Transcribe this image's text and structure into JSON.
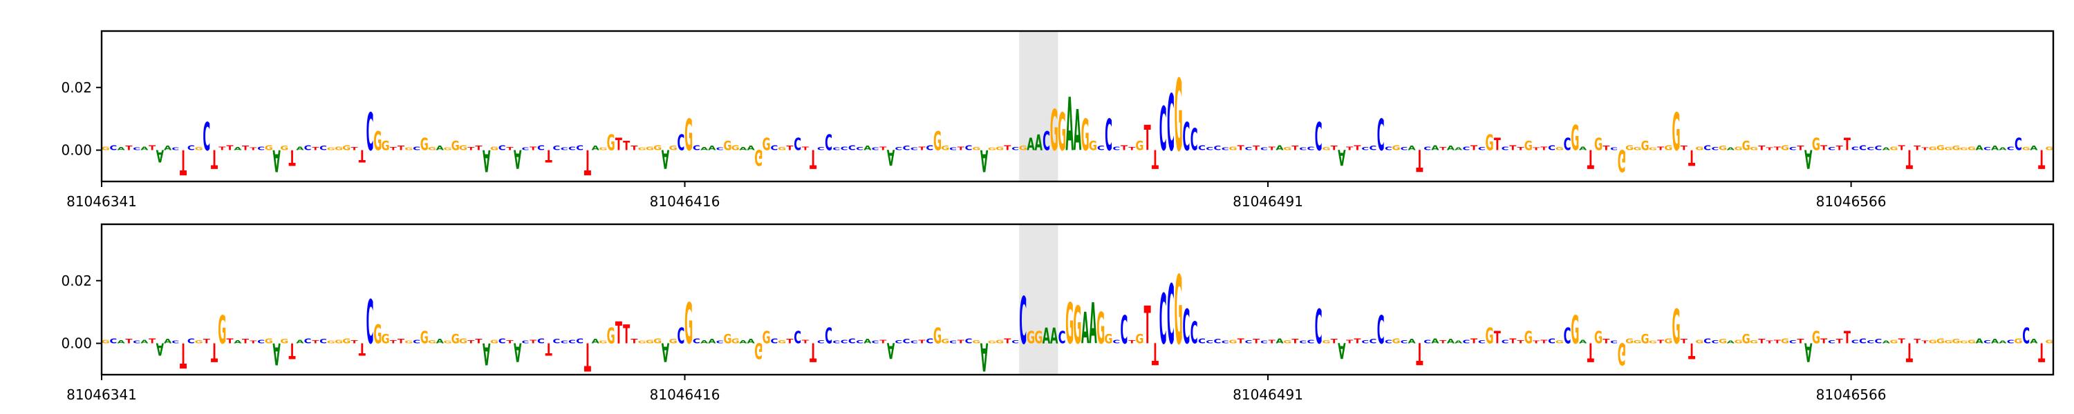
{
  "colors": {
    "A": "#008000",
    "C": "#0000ff",
    "G": "#ffa500",
    "T": "#ff0000",
    "highlight": "#e6e6e6"
  },
  "chart_data": [
    {
      "type": "sequence-logo",
      "xlim": [
        81046341,
        81046592
      ],
      "ylim": [
        -0.01,
        0.038
      ],
      "xticks": [
        81046341,
        81046416,
        81046491,
        81046566
      ],
      "yticks": [
        0.0,
        0.02
      ],
      "ytick_labels": [
        "0.00",
        "0.02"
      ],
      "highlight_range": [
        81046459,
        81046464
      ],
      "sequence": "GCATCATAACTCGTCTTATTCGGGAACTCGGGTGTGGTTGCCGAGCGTTTGCTTCTCTCCCCCAGTTTTGGGGGGACAACGGAAGGCGTTTCCGCCCCACTCCCCTCCGCTCGTGGTCGTTCTTTCGGCTCTTGTGGCTCCCCCCGTCTCTAGTCCCGTCTTCCCC",
      "motifs": [
        {
          "start": 81046354,
          "seq": "CG",
          "values": [
            0.009,
            0.007
          ]
        },
        {
          "start": 81046375,
          "seq": "CGG",
          "values": [
            0.012,
            0.006,
            0.003
          ]
        },
        {
          "start": 81046382,
          "seq": "G",
          "values": [
            0.004
          ]
        },
        {
          "start": 81046386,
          "seq": "G",
          "values": [
            0.003
          ]
        },
        {
          "start": 81046390,
          "seq": "G",
          "values": [
            0.004
          ]
        },
        {
          "start": 81046394,
          "seq": "G",
          "values": [
            0.004
          ]
        },
        {
          "start": 81046406,
          "seq": "GTT",
          "values": [
            0.005,
            0.004,
            0.003
          ]
        },
        {
          "start": 81046415,
          "seq": "CG",
          "values": [
            0.005,
            0.01
          ]
        },
        {
          "start": 81046421,
          "seq": "G",
          "values": [
            0.003
          ]
        },
        {
          "start": 81046426,
          "seq": "G",
          "values": [
            0.004
          ]
        },
        {
          "start": 81046430,
          "seq": "C",
          "values": [
            0.004
          ]
        },
        {
          "start": 81046434,
          "seq": "C",
          "values": [
            0.005
          ]
        },
        {
          "start": 81046448,
          "seq": "G",
          "values": [
            0.006
          ]
        },
        {
          "start": 81046460,
          "seq": "AAC",
          "values": [
            0.004,
            0.005,
            0.006
          ]
        },
        {
          "start": 81046463,
          "seq": "GGAAG",
          "values": [
            0.013,
            0.012,
            0.017,
            0.013,
            0.01
          ]
        },
        {
          "start": 81046468,
          "seq": "G",
          "values": [
            0.003
          ]
        },
        {
          "start": 81046470,
          "seq": "C",
          "values": [
            0.01
          ]
        },
        {
          "start": 81046474,
          "seq": "GTTCCGCC",
          "values": [
            0.003,
            0.008,
            0.011,
            0.014,
            0.018,
            0.023,
            0.009,
            0.007
          ]
        },
        {
          "start": 81046497,
          "seq": "C",
          "values": [
            0.009
          ]
        },
        {
          "start": 81046505,
          "seq": "C",
          "values": [
            0.01
          ]
        },
        {
          "start": 81046510,
          "seq": "C",
          "values": [
            0.005
          ]
        },
        {
          "start": 81046519,
          "seq": "GT",
          "values": [
            0.005,
            0.004
          ]
        },
        {
          "start": 81046524,
          "seq": "G",
          "values": [
            0.003
          ]
        },
        {
          "start": 81046529,
          "seq": "CG",
          "values": [
            0.004,
            0.008
          ]
        },
        {
          "start": 81046533,
          "seq": "G",
          "values": [
            0.004
          ]
        },
        {
          "start": 81046539,
          "seq": "G",
          "values": [
            0.003
          ]
        },
        {
          "start": 81046543,
          "seq": "G",
          "values": [
            0.012
          ]
        },
        {
          "start": 81046552,
          "seq": "G",
          "values": [
            0.003
          ]
        },
        {
          "start": 81046561,
          "seq": "G",
          "values": [
            0.004
          ]
        },
        {
          "start": 81046565,
          "seq": "T",
          "values": [
            0.004
          ]
        },
        {
          "start": 81046587,
          "seq": "C",
          "values": [
            0.004
          ]
        }
      ],
      "negatives": [
        {
          "pos": 81046348,
          "value": -0.004,
          "base": "A"
        },
        {
          "pos": 81046351,
          "value": -0.008,
          "base": "T"
        },
        {
          "pos": 81046355,
          "value": -0.006,
          "base": "T"
        },
        {
          "pos": 81046363,
          "value": -0.007,
          "base": "A"
        },
        {
          "pos": 81046365,
          "value": -0.005,
          "base": "T"
        },
        {
          "pos": 81046374,
          "value": -0.004,
          "base": "T"
        },
        {
          "pos": 81046390,
          "value": -0.007,
          "base": "A"
        },
        {
          "pos": 81046394,
          "value": -0.006,
          "base": "A"
        },
        {
          "pos": 81046398,
          "value": -0.004,
          "base": "T"
        },
        {
          "pos": 81046403,
          "value": -0.008,
          "base": "T"
        },
        {
          "pos": 81046413,
          "value": -0.006,
          "base": "A"
        },
        {
          "pos": 81046425,
          "value": -0.005,
          "base": "G"
        },
        {
          "pos": 81046432,
          "value": -0.006,
          "base": "T"
        },
        {
          "pos": 81046442,
          "value": -0.005,
          "base": "A"
        },
        {
          "pos": 81046454,
          "value": -0.007,
          "base": "A"
        },
        {
          "pos": 81046476,
          "value": -0.006,
          "base": "T"
        },
        {
          "pos": 81046500,
          "value": -0.005,
          "base": "A"
        },
        {
          "pos": 81046510,
          "value": -0.007,
          "base": "T"
        },
        {
          "pos": 81046532,
          "value": -0.006,
          "base": "T"
        },
        {
          "pos": 81046536,
          "value": -0.007,
          "base": "G"
        },
        {
          "pos": 81046545,
          "value": -0.005,
          "base": "T"
        },
        {
          "pos": 81046560,
          "value": -0.006,
          "base": "A"
        },
        {
          "pos": 81046573,
          "value": -0.006,
          "base": "T"
        },
        {
          "pos": 81046590,
          "value": -0.006,
          "base": "T"
        }
      ]
    },
    {
      "type": "sequence-logo",
      "xlim": [
        81046341,
        81046592
      ],
      "ylim": [
        -0.01,
        0.038
      ],
      "xticks": [
        81046341,
        81046416,
        81046491,
        81046566
      ],
      "yticks": [
        0.0,
        0.02
      ],
      "ytick_labels": [
        "0.00",
        "0.02"
      ],
      "highlight_range": [
        81046459,
        81046464
      ],
      "sequence": "GCATCATAACTCGTCTTATTCGGGAACTCGGGTGTGGTTGCCGAGCGTTTGCTTCTCTCCCCCAGTTTTGGGGGGACAACGGAAGGCGTTTCCGCCCCACTCCCCTCCGCTCGTGGTCGTTCTTTCGGCTCTTGTGGCTCCCCCCGTCTCTAGTCCCGTCTTCCCC",
      "motifs": [
        {
          "start": 81046355,
          "seq": "CG",
          "values": [
            0.004,
            0.009
          ]
        },
        {
          "start": 81046375,
          "seq": "CGG",
          "values": [
            0.014,
            0.006,
            0.003
          ]
        },
        {
          "start": 81046382,
          "seq": "G",
          "values": [
            0.004
          ]
        },
        {
          "start": 81046386,
          "seq": "G",
          "values": [
            0.003
          ]
        },
        {
          "start": 81046390,
          "seq": "G",
          "values": [
            0.004
          ]
        },
        {
          "start": 81046394,
          "seq": "G",
          "values": [
            0.004
          ]
        },
        {
          "start": 81046406,
          "seq": "GTT",
          "values": [
            0.005,
            0.007,
            0.006
          ]
        },
        {
          "start": 81046415,
          "seq": "CG",
          "values": [
            0.005,
            0.013
          ]
        },
        {
          "start": 81046421,
          "seq": "G",
          "values": [
            0.003
          ]
        },
        {
          "start": 81046426,
          "seq": "G",
          "values": [
            0.004
          ]
        },
        {
          "start": 81046430,
          "seq": "C",
          "values": [
            0.004
          ]
        },
        {
          "start": 81046434,
          "seq": "C",
          "values": [
            0.005
          ]
        },
        {
          "start": 81046448,
          "seq": "G",
          "values": [
            0.005
          ]
        },
        {
          "start": 81046459,
          "seq": "CGG",
          "values": [
            0.015,
            0.004,
            0.004
          ]
        },
        {
          "start": 81046462,
          "seq": "AAC",
          "values": [
            0.005,
            0.005,
            0.004
          ]
        },
        {
          "start": 81046465,
          "seq": "GGAAG",
          "values": [
            0.013,
            0.012,
            0.01,
            0.013,
            0.01
          ]
        },
        {
          "start": 81046470,
          "seq": "G",
          "values": [
            0.003
          ]
        },
        {
          "start": 81046472,
          "seq": "C",
          "values": [
            0.009
          ]
        },
        {
          "start": 81046474,
          "seq": "GTTCCGCC",
          "values": [
            0.003,
            0.012,
            0.011,
            0.016,
            0.019,
            0.022,
            0.011,
            0.007
          ]
        },
        {
          "start": 81046497,
          "seq": "C",
          "values": [
            0.011
          ]
        },
        {
          "start": 81046505,
          "seq": "C",
          "values": [
            0.009
          ]
        },
        {
          "start": 81046510,
          "seq": "C",
          "values": [
            0.006
          ]
        },
        {
          "start": 81046519,
          "seq": "GT",
          "values": [
            0.005,
            0.004
          ]
        },
        {
          "start": 81046524,
          "seq": "G",
          "values": [
            0.004
          ]
        },
        {
          "start": 81046529,
          "seq": "CG",
          "values": [
            0.005,
            0.009
          ]
        },
        {
          "start": 81046533,
          "seq": "G",
          "values": [
            0.004
          ]
        },
        {
          "start": 81046539,
          "seq": "G",
          "values": [
            0.003
          ]
        },
        {
          "start": 81046543,
          "seq": "G",
          "values": [
            0.011
          ]
        },
        {
          "start": 81046552,
          "seq": "G",
          "values": [
            0.003
          ]
        },
        {
          "start": 81046561,
          "seq": "G",
          "values": [
            0.004
          ]
        },
        {
          "start": 81046565,
          "seq": "T",
          "values": [
            0.004
          ]
        },
        {
          "start": 81046588,
          "seq": "C",
          "values": [
            0.005
          ]
        }
      ],
      "negatives": [
        {
          "pos": 81046348,
          "value": -0.004,
          "base": "A"
        },
        {
          "pos": 81046351,
          "value": -0.008,
          "base": "T"
        },
        {
          "pos": 81046355,
          "value": -0.006,
          "base": "T"
        },
        {
          "pos": 81046363,
          "value": -0.007,
          "base": "A"
        },
        {
          "pos": 81046365,
          "value": -0.005,
          "base": "T"
        },
        {
          "pos": 81046374,
          "value": -0.004,
          "base": "T"
        },
        {
          "pos": 81046390,
          "value": -0.007,
          "base": "A"
        },
        {
          "pos": 81046394,
          "value": -0.006,
          "base": "A"
        },
        {
          "pos": 81046398,
          "value": -0.004,
          "base": "T"
        },
        {
          "pos": 81046403,
          "value": -0.009,
          "base": "T"
        },
        {
          "pos": 81046413,
          "value": -0.006,
          "base": "A"
        },
        {
          "pos": 81046425,
          "value": -0.005,
          "base": "G"
        },
        {
          "pos": 81046432,
          "value": -0.006,
          "base": "T"
        },
        {
          "pos": 81046442,
          "value": -0.005,
          "base": "A"
        },
        {
          "pos": 81046454,
          "value": -0.009,
          "base": "A"
        },
        {
          "pos": 81046476,
          "value": -0.007,
          "base": "T"
        },
        {
          "pos": 81046500,
          "value": -0.005,
          "base": "A"
        },
        {
          "pos": 81046510,
          "value": -0.007,
          "base": "T"
        },
        {
          "pos": 81046532,
          "value": -0.006,
          "base": "T"
        },
        {
          "pos": 81046536,
          "value": -0.007,
          "base": "G"
        },
        {
          "pos": 81046545,
          "value": -0.005,
          "base": "T"
        },
        {
          "pos": 81046560,
          "value": -0.006,
          "base": "A"
        },
        {
          "pos": 81046573,
          "value": -0.006,
          "base": "T"
        },
        {
          "pos": 81046590,
          "value": -0.006,
          "base": "T"
        }
      ]
    }
  ]
}
